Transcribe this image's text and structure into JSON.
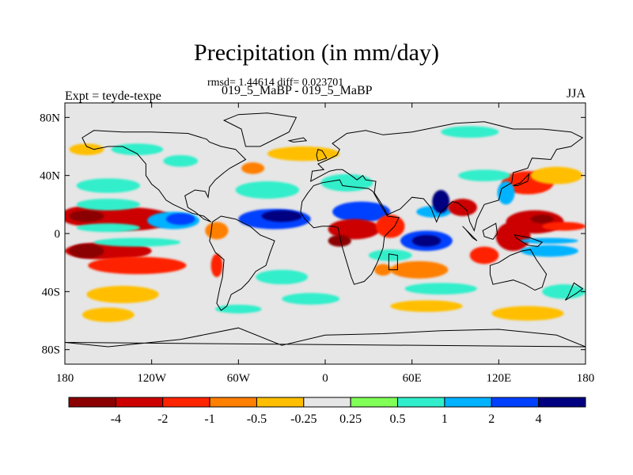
{
  "chart_data": {
    "type": "heatmap",
    "title": "Precipitation (in mm/day)",
    "stats_text": "rmsd= 1.44614 diff= 0.023701",
    "subtitle": "019_5_MaBP - 019_5_MaBP",
    "left_label": "Expt = teyde-texpe",
    "right_label": "JJA",
    "lon_range": [
      -180,
      180
    ],
    "lat_range": [
      -90,
      90
    ],
    "x_ticks": [
      {
        "value": -180,
        "label": "180"
      },
      {
        "value": -120,
        "label": "120W"
      },
      {
        "value": -60,
        "label": "60W"
      },
      {
        "value": 0,
        "label": "0"
      },
      {
        "value": 60,
        "label": "60E"
      },
      {
        "value": 120,
        "label": "120E"
      },
      {
        "value": 180,
        "label": "180"
      }
    ],
    "y_ticks": [
      {
        "value": 80,
        "label": "80N"
      },
      {
        "value": 40,
        "label": "40N"
      },
      {
        "value": 0,
        "label": "0"
      },
      {
        "value": -40,
        "label": "40S"
      },
      {
        "value": -80,
        "label": "80S"
      }
    ],
    "levels": [
      "-4",
      "-2",
      "-1",
      "-0.5",
      "-0.25",
      "0.25",
      "0.5",
      "1",
      "2",
      "4"
    ],
    "colors": [
      "#8b0000",
      "#cc0000",
      "#ff2400",
      "#ff7f00",
      "#ffbf00",
      "#e6e6e6",
      "#80ff57",
      "#30eecb",
      "#00b2ff",
      "#0040ff",
      "#000080"
    ],
    "regions": [
      {
        "lon": -165,
        "lat": 12,
        "rx": 18,
        "ry": 7,
        "v": -3
      },
      {
        "lon": -135,
        "lat": 10,
        "rx": 30,
        "ry": 8,
        "v": -2.5
      },
      {
        "lon": -165,
        "lat": 12,
        "rx": 12,
        "ry": 4,
        "v": -5
      },
      {
        "lon": -105,
        "lat": 9,
        "rx": 18,
        "ry": 6,
        "v": 1.5
      },
      {
        "lon": -100,
        "lat": 10,
        "rx": 10,
        "ry": 4,
        "v": 3
      },
      {
        "lon": -150,
        "lat": 20,
        "rx": 22,
        "ry": 4,
        "v": 0.6
      },
      {
        "lon": -150,
        "lat": 4,
        "rx": 22,
        "ry": 3,
        "v": 0.6
      },
      {
        "lon": -150,
        "lat": -12,
        "rx": 30,
        "ry": 6,
        "v": -2.5
      },
      {
        "lon": -130,
        "lat": -22,
        "rx": 34,
        "ry": 6,
        "v": -1.5
      },
      {
        "lon": -165,
        "lat": -12,
        "rx": 12,
        "ry": 5,
        "v": -5
      },
      {
        "lon": -130,
        "lat": -6,
        "rx": 30,
        "ry": 3,
        "v": 0.6
      },
      {
        "lon": -140,
        "lat": -42,
        "rx": 25,
        "ry": 6,
        "v": -0.35
      },
      {
        "lon": -150,
        "lat": -56,
        "rx": 18,
        "ry": 5,
        "v": -0.35
      },
      {
        "lon": -150,
        "lat": 33,
        "rx": 22,
        "ry": 5,
        "v": 0.6
      },
      {
        "lon": -165,
        "lat": 58,
        "rx": 12,
        "ry": 4,
        "v": -0.35
      },
      {
        "lon": -130,
        "lat": 58,
        "rx": 18,
        "ry": 4,
        "v": 0.6
      },
      {
        "lon": -75,
        "lat": 2,
        "rx": 8,
        "ry": 6,
        "v": -1
      },
      {
        "lon": -75,
        "lat": -22,
        "rx": 4,
        "ry": 8,
        "v": -1.5
      },
      {
        "lon": -35,
        "lat": 10,
        "rx": 25,
        "ry": 7,
        "v": 2
      },
      {
        "lon": -30,
        "lat": 12,
        "rx": 14,
        "ry": 4,
        "v": 4.5
      },
      {
        "lon": -40,
        "lat": 30,
        "rx": 22,
        "ry": 6,
        "v": 0.6
      },
      {
        "lon": -30,
        "lat": -30,
        "rx": 18,
        "ry": 5,
        "v": 0.6
      },
      {
        "lon": -10,
        "lat": -45,
        "rx": 20,
        "ry": 4,
        "v": 0.6
      },
      {
        "lon": -60,
        "lat": -52,
        "rx": 16,
        "ry": 3,
        "v": 0.6
      },
      {
        "lon": -15,
        "lat": 55,
        "rx": 25,
        "ry": 5,
        "v": -0.35
      },
      {
        "lon": 15,
        "lat": 35,
        "rx": 18,
        "ry": 6,
        "v": 0.6
      },
      {
        "lon": 25,
        "lat": 15,
        "rx": 20,
        "ry": 7,
        "v": 2.5
      },
      {
        "lon": 20,
        "lat": 3,
        "rx": 18,
        "ry": 7,
        "v": -3
      },
      {
        "lon": 10,
        "lat": -5,
        "rx": 8,
        "ry": 4,
        "v": -4.5
      },
      {
        "lon": 45,
        "lat": 5,
        "rx": 10,
        "ry": 8,
        "v": -2
      },
      {
        "lon": 45,
        "lat": -15,
        "rx": 15,
        "ry": 4,
        "v": 0.6
      },
      {
        "lon": 40,
        "lat": -25,
        "rx": 6,
        "ry": 4,
        "v": -1
      },
      {
        "lon": 70,
        "lat": -5,
        "rx": 18,
        "ry": 7,
        "v": 2.5
      },
      {
        "lon": 70,
        "lat": -5,
        "rx": 10,
        "ry": 4,
        "v": 5
      },
      {
        "lon": 75,
        "lat": 15,
        "rx": 12,
        "ry": 4,
        "v": 1.5
      },
      {
        "lon": 80,
        "lat": 22,
        "rx": 6,
        "ry": 8,
        "v": 4.5
      },
      {
        "lon": 95,
        "lat": 18,
        "rx": 10,
        "ry": 6,
        "v": -3
      },
      {
        "lon": 65,
        "lat": -25,
        "rx": 20,
        "ry": 6,
        "v": -0.7
      },
      {
        "lon": 80,
        "lat": -38,
        "rx": 25,
        "ry": 4,
        "v": 0.6
      },
      {
        "lon": 70,
        "lat": -50,
        "rx": 25,
        "ry": 4,
        "v": -0.35
      },
      {
        "lon": 110,
        "lat": -15,
        "rx": 10,
        "ry": 6,
        "v": -1.5
      },
      {
        "lon": 130,
        "lat": -2,
        "rx": 12,
        "ry": 10,
        "v": -2.5
      },
      {
        "lon": 145,
        "lat": 8,
        "rx": 20,
        "ry": 8,
        "v": -2.5
      },
      {
        "lon": 150,
        "lat": 10,
        "rx": 8,
        "ry": 3,
        "v": -5
      },
      {
        "lon": 155,
        "lat": -12,
        "rx": 20,
        "ry": 4,
        "v": 1
      },
      {
        "lon": 155,
        "lat": -5,
        "rx": 20,
        "ry": 2,
        "v": 1.5
      },
      {
        "lon": 165,
        "lat": 5,
        "rx": 15,
        "ry": 3,
        "v": -2
      },
      {
        "lon": 140,
        "lat": 35,
        "rx": 18,
        "ry": 8,
        "v": -2
      },
      {
        "lon": 125,
        "lat": 28,
        "rx": 6,
        "ry": 8,
        "v": 1.5
      },
      {
        "lon": 160,
        "lat": 40,
        "rx": 18,
        "ry": 6,
        "v": -0.35
      },
      {
        "lon": 110,
        "lat": 40,
        "rx": 18,
        "ry": 4,
        "v": 0.6
      },
      {
        "lon": 165,
        "lat": -40,
        "rx": 15,
        "ry": 5,
        "v": 0.6
      },
      {
        "lon": 140,
        "lat": -55,
        "rx": 25,
        "ry": 5,
        "v": -0.35
      },
      {
        "lon": 100,
        "lat": 70,
        "rx": 20,
        "ry": 4,
        "v": 0.6
      },
      {
        "lon": -100,
        "lat": 50,
        "rx": 12,
        "ry": 4,
        "v": 0.6
      },
      {
        "lon": -50,
        "lat": 45,
        "rx": 8,
        "ry": 4,
        "v": -0.7
      }
    ],
    "continents": [
      [
        [
          -168,
          66
        ],
        [
          -160,
          71
        ],
        [
          -140,
          70
        ],
        [
          -120,
          70
        ],
        [
          -95,
          69
        ],
        [
          -82,
          65
        ],
        [
          -80,
          63
        ],
        [
          -72,
          60
        ],
        [
          -62,
          58
        ],
        [
          -55,
          51
        ],
        [
          -66,
          45
        ],
        [
          -70,
          42
        ],
        [
          -76,
          37
        ],
        [
          -80,
          32
        ],
        [
          -81,
          25
        ],
        [
          -83,
          29
        ],
        [
          -90,
          30
        ],
        [
          -97,
          26
        ],
        [
          -95,
          18
        ],
        [
          -90,
          15
        ],
        [
          -84,
          10
        ],
        [
          -79,
          8
        ],
        [
          -84,
          12
        ],
        [
          -92,
          14
        ],
        [
          -105,
          20
        ],
        [
          -110,
          23
        ],
        [
          -115,
          30
        ],
        [
          -120,
          34
        ],
        [
          -124,
          40
        ],
        [
          -124,
          48
        ],
        [
          -130,
          55
        ],
        [
          -140,
          60
        ],
        [
          -150,
          60
        ],
        [
          -160,
          58
        ],
        [
          -165,
          60
        ]
      ],
      [
        [
          -78,
          8
        ],
        [
          -72,
          12
        ],
        [
          -62,
          10
        ],
        [
          -52,
          5
        ],
        [
          -45,
          -1
        ],
        [
          -35,
          -5
        ],
        [
          -38,
          -13
        ],
        [
          -41,
          -22
        ],
        [
          -48,
          -26
        ],
        [
          -53,
          -33
        ],
        [
          -58,
          -38
        ],
        [
          -65,
          -42
        ],
        [
          -68,
          -50
        ],
        [
          -72,
          -53
        ],
        [
          -75,
          -48
        ],
        [
          -73,
          -38
        ],
        [
          -71,
          -30
        ],
        [
          -70,
          -18
        ],
        [
          -76,
          -13
        ],
        [
          -80,
          -5
        ],
        [
          -79,
          0
        ]
      ],
      [
        [
          -17,
          15
        ],
        [
          -16,
          22
        ],
        [
          -12,
          28
        ],
        [
          -8,
          33
        ],
        [
          -2,
          35
        ],
        [
          10,
          37
        ],
        [
          12,
          33
        ],
        [
          20,
          32
        ],
        [
          30,
          31
        ],
        [
          33,
          29
        ],
        [
          38,
          20
        ],
        [
          43,
          12
        ],
        [
          51,
          11
        ],
        [
          48,
          5
        ],
        [
          41,
          -2
        ],
        [
          40,
          -10
        ],
        [
          36,
          -20
        ],
        [
          32,
          -28
        ],
        [
          27,
          -33
        ],
        [
          20,
          -35
        ],
        [
          18,
          -30
        ],
        [
          15,
          -20
        ],
        [
          12,
          -10
        ],
        [
          10,
          -2
        ],
        [
          9,
          4
        ],
        [
          5,
          5
        ],
        [
          -2,
          5
        ],
        [
          -8,
          4
        ],
        [
          -14,
          10
        ]
      ],
      [
        [
          -10,
          36
        ],
        [
          -9,
          43
        ],
        [
          -1,
          44
        ],
        [
          -5,
          48
        ],
        [
          2,
          51
        ],
        [
          8,
          54
        ],
        [
          10,
          58
        ],
        [
          5,
          62
        ],
        [
          15,
          69
        ],
        [
          28,
          71
        ],
        [
          40,
          68
        ],
        [
          60,
          70
        ],
        [
          75,
          73
        ],
        [
          90,
          76
        ],
        [
          110,
          77
        ],
        [
          130,
          72
        ],
        [
          150,
          72
        ],
        [
          170,
          70
        ],
        [
          178,
          66
        ],
        [
          170,
          60
        ],
        [
          160,
          58
        ],
        [
          156,
          51
        ],
        [
          143,
          52
        ],
        [
          140,
          45
        ],
        [
          130,
          42
        ],
        [
          129,
          35
        ],
        [
          122,
          31
        ],
        [
          120,
          23
        ],
        [
          110,
          20
        ],
        [
          105,
          10
        ],
        [
          103,
          2
        ],
        [
          100,
          8
        ],
        [
          98,
          16
        ],
        [
          92,
          21
        ],
        [
          88,
          22
        ],
        [
          80,
          15
        ],
        [
          77,
          8
        ],
        [
          73,
          18
        ],
        [
          68,
          24
        ],
        [
          60,
          25
        ],
        [
          57,
          22
        ],
        [
          52,
          17
        ],
        [
          43,
          13
        ],
        [
          38,
          22
        ],
        [
          34,
          28
        ],
        [
          35,
          36
        ],
        [
          28,
          37
        ],
        [
          26,
          40
        ],
        [
          22,
          37
        ],
        [
          18,
          40
        ],
        [
          12,
          44
        ],
        [
          8,
          44
        ],
        [
          3,
          43
        ]
      ],
      [
        [
          114,
          -22
        ],
        [
          120,
          -20
        ],
        [
          128,
          -15
        ],
        [
          136,
          -12
        ],
        [
          142,
          -11
        ],
        [
          146,
          -18
        ],
        [
          153,
          -28
        ],
        [
          150,
          -37
        ],
        [
          145,
          -39
        ],
        [
          138,
          -35
        ],
        [
          130,
          -32
        ],
        [
          116,
          -35
        ],
        [
          114,
          -28
        ]
      ],
      [
        [
          -55,
          60
        ],
        [
          -45,
          60
        ],
        [
          -25,
          70
        ],
        [
          -20,
          80
        ],
        [
          -40,
          83
        ],
        [
          -60,
          82
        ],
        [
          -70,
          78
        ],
        [
          -58,
          72
        ]
      ],
      [
        [
          -180,
          -75
        ],
        [
          -150,
          -78
        ],
        [
          -100,
          -73
        ],
        [
          -60,
          -65
        ],
        [
          -30,
          -77
        ],
        [
          0,
          -70
        ],
        [
          40,
          -69
        ],
        [
          80,
          -67
        ],
        [
          120,
          -66
        ],
        [
          160,
          -70
        ],
        [
          180,
          -78
        ]
      ],
      [
        [
          95,
          5
        ],
        [
          98,
          2
        ],
        [
          105,
          -5
        ],
        [
          102,
          -3
        ],
        [
          97,
          3
        ]
      ],
      [
        [
          109,
          2
        ],
        [
          118,
          7
        ],
        [
          119,
          0
        ],
        [
          116,
          -4
        ],
        [
          110,
          -2
        ]
      ],
      [
        [
          131,
          -1
        ],
        [
          142,
          -3
        ],
        [
          150,
          -6
        ],
        [
          147,
          -9
        ],
        [
          140,
          -8
        ],
        [
          132,
          -3
        ]
      ],
      [
        [
          -5,
          50
        ],
        [
          1,
          52
        ],
        [
          -2,
          57
        ],
        [
          -5,
          58
        ],
        [
          -6,
          54
        ]
      ],
      [
        [
          -25,
          64
        ],
        [
          -15,
          66
        ],
        [
          -13,
          64
        ],
        [
          -22,
          63
        ]
      ],
      [
        [
          130,
          33
        ],
        [
          135,
          35
        ],
        [
          141,
          41
        ],
        [
          140,
          36
        ],
        [
          133,
          33
        ]
      ],
      [
        [
          44,
          -14
        ],
        [
          50,
          -15
        ],
        [
          50,
          -25
        ],
        [
          44,
          -25
        ]
      ],
      [
        [
          166,
          -46
        ],
        [
          174,
          -41
        ],
        [
          178,
          -38
        ],
        [
          172,
          -34
        ],
        [
          168,
          -43
        ]
      ]
    ]
  }
}
